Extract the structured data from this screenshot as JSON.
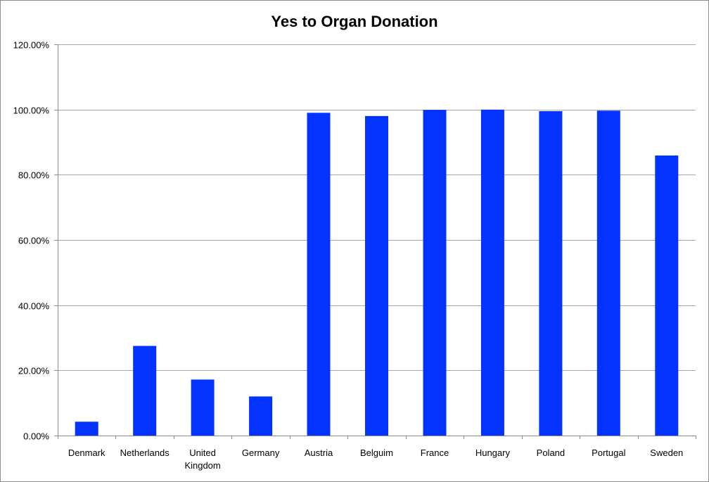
{
  "chart_data": {
    "type": "bar",
    "title": "Yes to Organ Donation",
    "xlabel": "",
    "ylabel": "",
    "categories": [
      "Denmark",
      "Netherlands",
      "United Kingdom",
      "Germany",
      "Austria",
      "Belguim",
      "France",
      "Hungary",
      "Poland",
      "Portugal",
      "Sweden"
    ],
    "category_label_lines": [
      [
        "Denmark"
      ],
      [
        "Netherlands"
      ],
      [
        "United",
        "Kingdom"
      ],
      [
        "Germany"
      ],
      [
        "Austria"
      ],
      [
        "Belguim"
      ],
      [
        "France"
      ],
      [
        "Hungary"
      ],
      [
        "Poland"
      ],
      [
        "Portugal"
      ],
      [
        "Sweden"
      ]
    ],
    "values": [
      4.25,
      27.5,
      17.17,
      12.0,
      99.0,
      98.0,
      99.91,
      99.97,
      99.5,
      99.64,
      85.9
    ],
    "ylim": [
      0,
      120
    ],
    "yticks": [
      0,
      20,
      40,
      60,
      80,
      100,
      120
    ],
    "ytick_labels": [
      "0.00%",
      "20.00%",
      "40.00%",
      "60.00%",
      "80.00%",
      "100.00%",
      "120.00%"
    ],
    "grid": true,
    "legend": "none",
    "bar_color": "#0433ff"
  }
}
